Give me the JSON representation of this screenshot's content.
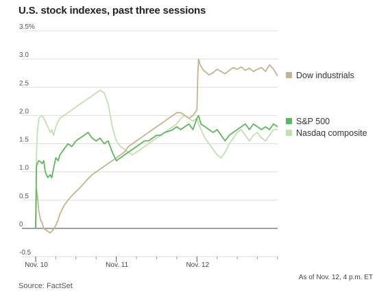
{
  "header": {
    "title": "U.S. stock indexes, past three sessions"
  },
  "footer": {
    "source": "Source: FactSet",
    "as_of": "As of Nov. 12, 4 p.m. ET"
  },
  "colors": {
    "dow": "#c4b48a",
    "sp500": "#5cb85c",
    "nasdaq": "#c2e0b0",
    "grid": "#dddddd",
    "zero": "#666666"
  },
  "chart_data": {
    "type": "line",
    "title": "U.S. stock indexes, past three sessions",
    "ylim": [
      -0.5,
      3.5
    ],
    "yticks": [
      -0.5,
      0,
      0.5,
      1.0,
      1.5,
      2.0,
      2.5,
      3.0,
      3.5
    ],
    "ytick_labels": [
      "-0.5",
      "0",
      "0.5",
      "1.0",
      "1.5",
      "2.0",
      "2.5",
      "3.0",
      "3.5%"
    ],
    "xlim": [
      0,
      3
    ],
    "xticks": [
      0,
      1,
      2
    ],
    "xtick_labels": [
      "Nov. 10",
      "Nov. 11",
      "Nov. 12"
    ],
    "minor_xticks": [
      0.25,
      0.5,
      0.75,
      1.25,
      1.5,
      1.75,
      2.25,
      2.5,
      2.75,
      3.0
    ],
    "grid": true,
    "legend": "right",
    "series": [
      {
        "name": "Dow industrials",
        "x": [
          0,
          0.01,
          0.02,
          0.04,
          0.06,
          0.08,
          0.1,
          0.12,
          0.15,
          0.18,
          0.2,
          0.22,
          0.25,
          0.28,
          0.3,
          0.35,
          0.4,
          0.45,
          0.5,
          0.55,
          0.6,
          0.65,
          0.7,
          0.75,
          0.8,
          0.85,
          0.9,
          0.95,
          1.0,
          1.05,
          1.1,
          1.15,
          1.2,
          1.25,
          1.3,
          1.35,
          1.4,
          1.45,
          1.5,
          1.55,
          1.6,
          1.65,
          1.7,
          1.75,
          1.8,
          1.85,
          1.9,
          1.95,
          2.0,
          2.01,
          2.02,
          2.04,
          2.06,
          2.08,
          2.1,
          2.15,
          2.2,
          2.25,
          2.3,
          2.35,
          2.4,
          2.45,
          2.5,
          2.55,
          2.6,
          2.65,
          2.7,
          2.75,
          2.8,
          2.85,
          2.9,
          2.95,
          3.0
        ],
        "values": [
          0.0,
          0.7,
          0.6,
          0.3,
          0.15,
          0.1,
          0.0,
          -0.02,
          -0.05,
          -0.08,
          -0.05,
          -0.02,
          0.05,
          0.15,
          0.25,
          0.4,
          0.5,
          0.58,
          0.65,
          0.72,
          0.8,
          0.88,
          0.95,
          1.0,
          1.05,
          1.1,
          1.15,
          1.2,
          1.25,
          1.3,
          1.35,
          1.45,
          1.5,
          1.55,
          1.6,
          1.65,
          1.7,
          1.75,
          1.8,
          1.85,
          1.9,
          1.95,
          2.0,
          2.05,
          2.05,
          2.0,
          1.95,
          2.0,
          2.1,
          2.7,
          3.0,
          2.9,
          2.85,
          2.8,
          2.78,
          2.72,
          2.76,
          2.82,
          2.78,
          2.74,
          2.8,
          2.85,
          2.82,
          2.86,
          2.8,
          2.84,
          2.78,
          2.82,
          2.85,
          2.78,
          2.9,
          2.82,
          2.7
        ]
      },
      {
        "name": "S&P 500",
        "x": [
          0,
          0.01,
          0.02,
          0.04,
          0.06,
          0.08,
          0.1,
          0.12,
          0.15,
          0.18,
          0.2,
          0.22,
          0.25,
          0.28,
          0.3,
          0.35,
          0.4,
          0.45,
          0.5,
          0.55,
          0.6,
          0.65,
          0.7,
          0.75,
          0.8,
          0.85,
          0.9,
          0.95,
          1.0,
          1.05,
          1.1,
          1.15,
          1.2,
          1.25,
          1.3,
          1.35,
          1.4,
          1.45,
          1.5,
          1.55,
          1.6,
          1.65,
          1.7,
          1.75,
          1.8,
          1.85,
          1.9,
          1.95,
          2.0,
          2.02,
          2.05,
          2.1,
          2.15,
          2.2,
          2.25,
          2.3,
          2.35,
          2.4,
          2.45,
          2.5,
          2.55,
          2.6,
          2.65,
          2.7,
          2.75,
          2.8,
          2.85,
          2.9,
          2.95,
          3.0
        ],
        "values": [
          0.0,
          1.1,
          1.15,
          1.2,
          1.18,
          1.15,
          1.2,
          1.0,
          0.9,
          0.95,
          0.9,
          1.05,
          1.25,
          1.2,
          1.3,
          1.4,
          1.5,
          1.45,
          1.55,
          1.6,
          1.65,
          1.7,
          1.6,
          1.55,
          1.6,
          1.5,
          1.55,
          1.35,
          1.2,
          1.25,
          1.3,
          1.35,
          1.4,
          1.45,
          1.5,
          1.55,
          1.55,
          1.6,
          1.65,
          1.65,
          1.7,
          1.72,
          1.75,
          1.8,
          1.75,
          1.8,
          1.85,
          1.75,
          1.95,
          2.0,
          1.85,
          1.8,
          1.75,
          1.7,
          1.75,
          1.65,
          1.55,
          1.65,
          1.7,
          1.75,
          1.8,
          1.85,
          1.75,
          1.85,
          1.8,
          1.75,
          1.8,
          1.75,
          1.85,
          1.8
        ]
      },
      {
        "name": "Nasdaq composite",
        "x": [
          0,
          0.01,
          0.02,
          0.04,
          0.06,
          0.08,
          0.1,
          0.12,
          0.15,
          0.18,
          0.2,
          0.22,
          0.25,
          0.28,
          0.3,
          0.35,
          0.4,
          0.45,
          0.5,
          0.55,
          0.6,
          0.65,
          0.7,
          0.75,
          0.8,
          0.85,
          0.9,
          0.95,
          1.0,
          1.05,
          1.1,
          1.15,
          1.2,
          1.25,
          1.3,
          1.35,
          1.4,
          1.45,
          1.5,
          1.55,
          1.6,
          1.65,
          1.7,
          1.75,
          1.8,
          1.85,
          1.9,
          1.95,
          2.0,
          2.02,
          2.05,
          2.1,
          2.15,
          2.2,
          2.25,
          2.3,
          2.35,
          2.4,
          2.45,
          2.5,
          2.55,
          2.6,
          2.65,
          2.7,
          2.75,
          2.8,
          2.85,
          2.9,
          2.95,
          3.0
        ],
        "values": [
          0.0,
          1.3,
          1.7,
          1.95,
          1.98,
          2.0,
          1.95,
          1.9,
          1.8,
          1.7,
          1.75,
          1.65,
          1.8,
          1.9,
          1.95,
          2.0,
          2.05,
          2.1,
          2.15,
          2.2,
          2.25,
          2.3,
          2.35,
          2.4,
          2.45,
          2.4,
          2.2,
          1.8,
          1.55,
          1.45,
          1.4,
          1.35,
          1.3,
          1.35,
          1.4,
          1.45,
          1.5,
          1.55,
          1.6,
          1.65,
          1.7,
          1.75,
          1.8,
          1.85,
          1.95,
          2.0,
          1.95,
          1.9,
          1.95,
          1.85,
          1.75,
          1.6,
          1.5,
          1.4,
          1.3,
          1.25,
          1.35,
          1.5,
          1.6,
          1.7,
          1.75,
          1.65,
          1.55,
          1.65,
          1.7,
          1.6,
          1.55,
          1.65,
          1.75,
          1.75
        ]
      }
    ]
  }
}
